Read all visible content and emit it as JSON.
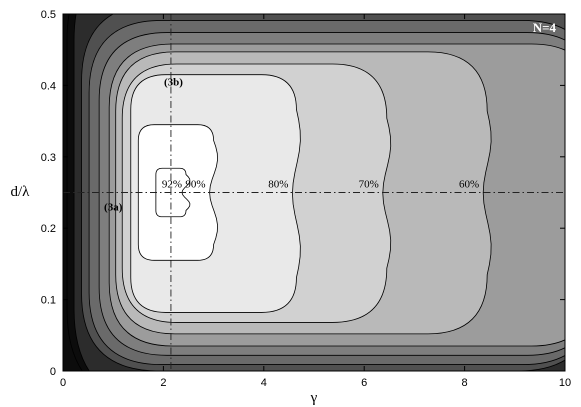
{
  "chart_data": {
    "type": "heatmap",
    "title": "",
    "xlabel": "γ",
    "ylabel": "d/λ",
    "xlim": [
      0,
      10
    ],
    "ylim": [
      0,
      0.5
    ],
    "x_ticks": [
      "0",
      "2",
      "4",
      "6",
      "8",
      "10"
    ],
    "y_ticks": [
      "0",
      "0.1",
      "0.2",
      "0.3",
      "0.4",
      "0.5"
    ],
    "panel_label": "N=4",
    "colors": [
      "#0c0c0c",
      "#2c2c2c",
      "#505050",
      "#6a6a6a",
      "#7e7e7e",
      "#9c9c9c",
      "#b9b9b9",
      "#d1d1d1",
      "#e9e9e9",
      "#ffffff"
    ],
    "contour_levels": [
      {
        "label": "",
        "right_x": 10.6,
        "y_low": -0.05,
        "y_high": 0.6,
        "left_x": 0.08
      },
      {
        "label": "",
        "right_x": 10.6,
        "y_low": -0.05,
        "y_high": 0.6,
        "left_x": 0.22
      },
      {
        "label": "",
        "right_x": 10.6,
        "y_low": 0.0,
        "y_high": 0.514,
        "left_x": 0.37
      },
      {
        "label": "",
        "right_x": 10.6,
        "y_low": 0.009,
        "y_high": 0.491,
        "left_x": 0.52
      },
      {
        "label": "",
        "right_x": 10.6,
        "y_low": 0.022,
        "y_high": 0.474,
        "left_x": 0.72
      },
      {
        "label": "",
        "right_x": 10.6,
        "y_low": 0.035,
        "y_high": 0.458,
        "left_x": 0.92
      },
      {
        "label": "60%",
        "right_x": 8.45,
        "y_low": 0.052,
        "y_high": 0.447,
        "left_x": 1.05
      },
      {
        "label": "70%",
        "right_x": 6.45,
        "y_low": 0.068,
        "y_high": 0.43,
        "left_x": 1.18
      },
      {
        "label": "80%",
        "right_x": 4.65,
        "y_low": 0.082,
        "y_high": 0.415,
        "left_x": 1.35
      },
      {
        "label": "90%",
        "right_x": 3.0,
        "y_low": 0.155,
        "y_high": 0.345,
        "left_x": 1.5
      },
      {
        "label": "92%",
        "right_x": 2.45,
        "y_low": 0.216,
        "y_high": 0.284,
        "left_x": 1.85
      }
    ],
    "reference_lines": {
      "x": 2.15,
      "y": 0.25
    },
    "annotations": [
      {
        "text": "(3a)",
        "x": 1.0,
        "y": 0.225
      },
      {
        "text": "(3b)",
        "x": 2.2,
        "y": 0.4
      }
    ]
  }
}
